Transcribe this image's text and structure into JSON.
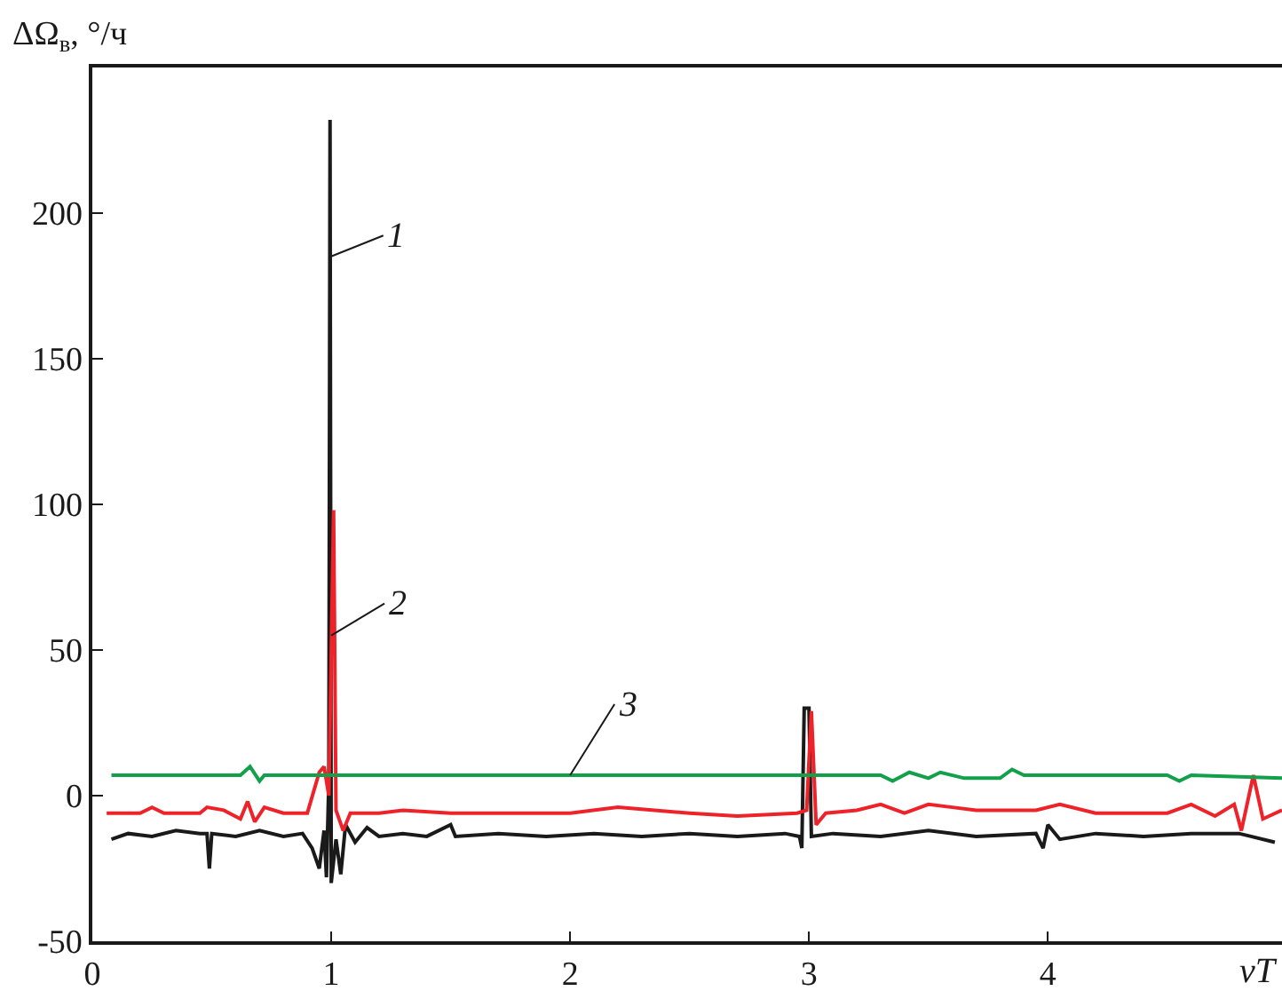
{
  "chart_data": {
    "type": "line",
    "ylabel": "ΔΩ$_{в}$, °/ч",
    "xlabel": "νT",
    "xlim": [
      0,
      4.98
    ],
    "xticks": [
      0,
      1,
      2,
      3,
      4
    ],
    "ylim": [
      -50,
      250
    ],
    "yticks": [
      -50,
      0,
      50,
      100,
      150,
      200
    ],
    "grid": false,
    "marker": "none",
    "line_style": "solid",
    "series": [
      {
        "color": "#1a1a1a",
        "x": [
          0.08,
          0.15,
          0.25,
          0.35,
          0.45,
          0.48,
          0.49,
          0.5,
          0.6,
          0.7,
          0.8,
          0.88,
          0.92,
          0.95,
          0.97,
          0.98,
          0.99,
          0.995,
          1.0,
          1.02,
          1.04,
          1.06,
          1.1,
          1.15,
          1.2,
          1.3,
          1.4,
          1.5,
          1.52,
          1.7,
          1.9,
          2.1,
          2.3,
          2.5,
          2.7,
          2.9,
          2.96,
          2.97,
          2.98,
          3.0,
          3.01,
          3.1,
          3.3,
          3.5,
          3.7,
          3.95,
          3.98,
          4.0,
          4.05,
          4.2,
          4.4,
          4.6,
          4.8,
          4.85,
          4.95
        ],
        "values": [
          -15,
          -13,
          -14,
          -12,
          -13,
          -13,
          -25,
          -13,
          -14,
          -12,
          -14,
          -13,
          -18,
          -25,
          -12,
          -28,
          5,
          232,
          -30,
          -15,
          -27,
          -10,
          -16,
          -11,
          -14,
          -13,
          -14,
          -10,
          -14,
          -13,
          -14,
          -13,
          -14,
          -13,
          -14,
          -13,
          -14,
          -18,
          30,
          30,
          -14,
          -13,
          -14,
          -12,
          -14,
          -13,
          -18,
          -10,
          -15,
          -13,
          -14,
          -13,
          -13,
          -14,
          -16
        ]
      },
      {
        "color": "#ee2229",
        "x": [
          0.06,
          0.2,
          0.25,
          0.3,
          0.45,
          0.48,
          0.55,
          0.62,
          0.65,
          0.68,
          0.72,
          0.8,
          0.9,
          0.95,
          0.97,
          0.99,
          1.01,
          1.02,
          1.05,
          1.08,
          1.2,
          1.3,
          1.5,
          1.7,
          2.0,
          2.2,
          2.5,
          2.7,
          2.95,
          2.99,
          3.01,
          3.03,
          3.07,
          3.2,
          3.3,
          3.4,
          3.5,
          3.6,
          3.7,
          3.95,
          4.05,
          4.2,
          4.5,
          4.6,
          4.7,
          4.78,
          4.81,
          4.86,
          4.9,
          4.98
        ],
        "values": [
          -6,
          -6,
          -4,
          -6,
          -6,
          -4,
          -5,
          -8,
          -2,
          -9,
          -4,
          -6,
          -6,
          8,
          10,
          0,
          98,
          -5,
          -12,
          -6,
          -6,
          -5,
          -6,
          -6,
          -6,
          -4,
          -6,
          -7,
          -6,
          -5,
          29,
          -10,
          -6,
          -5,
          -3,
          -6,
          -3,
          -4,
          -5,
          -5,
          -3,
          -6,
          -6,
          -3,
          -7,
          -3,
          -12,
          7,
          -8,
          -5
        ]
      },
      {
        "color": "#12a04a",
        "x": [
          0.08,
          0.62,
          0.66,
          0.7,
          0.72,
          3.3,
          3.35,
          3.42,
          3.5,
          3.55,
          3.65,
          3.8,
          3.85,
          3.9,
          4.5,
          4.55,
          4.6,
          4.98
        ],
        "values": [
          7,
          7,
          10,
          5,
          7,
          7,
          5,
          8,
          6,
          8,
          6,
          6,
          9,
          7,
          7,
          5,
          7,
          6
        ]
      }
    ],
    "annotations": [
      {
        "text": "1",
        "x": 0.995,
        "y": 185
      },
      {
        "text": "2",
        "x": 1.0,
        "y": 55
      },
      {
        "text": "3",
        "x": 2.0,
        "y": 7
      }
    ]
  }
}
